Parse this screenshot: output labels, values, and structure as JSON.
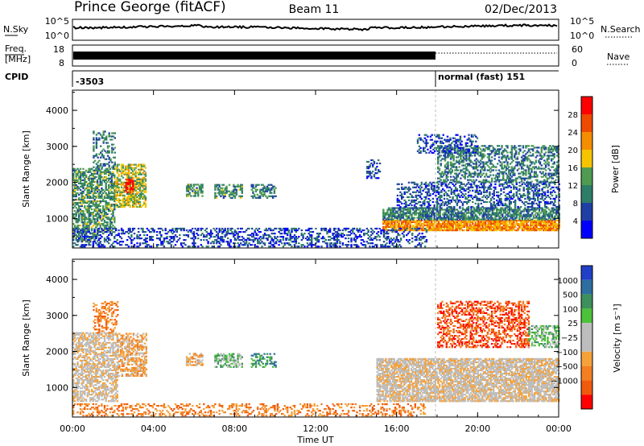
{
  "header": {
    "station": "Prince George (fitACF)",
    "beam": "Beam 11",
    "date": "02/Dec/2013"
  },
  "top_panel": {
    "n_sky_label": "N.Sky",
    "n_search_label": "N.Search",
    "freq_label": "Freq.",
    "freq_unit": "[MHz]",
    "nave_label": "Nave",
    "cpid_label": "CPID",
    "n_sky_ticks": [
      "10^5",
      "10^0"
    ],
    "n_search_ticks": [
      "10^5",
      "10^0"
    ],
    "freq_ticks": [
      "18",
      "8"
    ],
    "nave_ticks": [
      "60",
      "0"
    ],
    "cpid_before": "-3503",
    "cpid_after": "normal (fast) 151"
  },
  "colors": {
    "power_scale": [
      "#0000ff",
      "#1f3fa5",
      "#2e7d68",
      "#4f9b52",
      "#f5c400",
      "#f58d00",
      "#ee4a00",
      "#ff0000"
    ],
    "velocity_scale": [
      "#2040c8",
      "#2e6ea0",
      "#3d8f5c",
      "#4cc13a",
      "#bdbdbd",
      "#bdbdbd",
      "#f6a23a",
      "#f37f22",
      "#f05a0d",
      "#ff0000"
    ]
  },
  "chart_data": [
    {
      "type": "heatmap",
      "name": "power",
      "ylabel": "Slant Range [km]",
      "xlabel": "",
      "x_ticks": [
        "00:00",
        "04:00",
        "08:00",
        "12:00",
        "16:00",
        "20:00",
        "00:00"
      ],
      "xlim_hours": [
        0,
        24
      ],
      "y_ticks": [
        "1000",
        "2000",
        "3000",
        "4000"
      ],
      "ylim_km": [
        180,
        4560
      ],
      "colorbar_label": "Power [dB]",
      "colorbar_ticks": [
        "28",
        "24",
        "20",
        "16",
        "12",
        "8",
        "4"
      ],
      "colorbar_range": [
        0,
        32
      ],
      "blobs": [
        {
          "t0": 0.0,
          "t1": 2.1,
          "r0": 600,
          "r1": 2400,
          "v": 12,
          "d": 0.6
        },
        {
          "t0": 1.0,
          "t1": 2.1,
          "r0": 2400,
          "r1": 3400,
          "v": 10,
          "d": 0.35
        },
        {
          "t0": 2.1,
          "t1": 3.6,
          "r0": 1300,
          "r1": 2500,
          "v": 16,
          "d": 0.65
        },
        {
          "t0": 2.6,
          "t1": 3.0,
          "r0": 1700,
          "r1": 2100,
          "v": 28,
          "d": 0.7
        },
        {
          "t0": 0.0,
          "t1": 1.2,
          "r0": 350,
          "r1": 650,
          "v": 12,
          "d": 0.5
        },
        {
          "t0": 5.6,
          "t1": 6.4,
          "r0": 1600,
          "r1": 1950,
          "v": 12,
          "d": 0.55
        },
        {
          "t0": 7.0,
          "t1": 8.4,
          "r0": 1550,
          "r1": 1950,
          "v": 12,
          "d": 0.55
        },
        {
          "t0": 8.8,
          "t1": 10.0,
          "r0": 1550,
          "r1": 1950,
          "v": 10,
          "d": 0.45
        },
        {
          "t0": 14.5,
          "t1": 15.2,
          "r0": 2100,
          "r1": 2600,
          "v": 6,
          "d": 0.3
        },
        {
          "t0": 15.3,
          "t1": 24.0,
          "r0": 650,
          "r1": 950,
          "v": 22,
          "d": 0.85
        },
        {
          "t0": 15.3,
          "t1": 24.0,
          "r0": 950,
          "r1": 1300,
          "v": 10,
          "d": 0.7
        },
        {
          "t0": 16.0,
          "t1": 24.0,
          "r0": 1300,
          "r1": 2000,
          "v": 7,
          "d": 0.4
        },
        {
          "t0": 18.0,
          "t1": 24.0,
          "r0": 2000,
          "r1": 3000,
          "v": 10,
          "d": 0.45
        },
        {
          "t0": 17.0,
          "t1": 20.0,
          "r0": 2800,
          "r1": 3300,
          "v": 6,
          "d": 0.35
        },
        {
          "t0": 0.0,
          "t1": 17.5,
          "r0": 200,
          "r1": 700,
          "v": 6,
          "d": 0.35
        }
      ]
    },
    {
      "type": "heatmap",
      "name": "velocity",
      "ylabel": "Slant Range [km]",
      "xlabel": "Time UT",
      "x_ticks": [
        "00:00",
        "04:00",
        "08:00",
        "12:00",
        "16:00",
        "20:00",
        "00:00"
      ],
      "xlim_hours": [
        0,
        24
      ],
      "y_ticks": [
        "1000",
        "2000",
        "3000",
        "4000"
      ],
      "ylim_km": [
        180,
        4560
      ],
      "colorbar_label": "Velocity [m s⁻¹]",
      "colorbar_ticks": [
        "1000",
        "500",
        "100",
        "25",
        "−25",
        "−100",
        "−500",
        "−1000"
      ],
      "blobs": [
        {
          "t0": 0.0,
          "t1": 2.2,
          "r0": 600,
          "r1": 2500,
          "c": 5,
          "d": 0.6
        },
        {
          "t0": 1.0,
          "t1": 2.2,
          "r0": 2500,
          "r1": 3400,
          "c": 7,
          "d": 0.35
        },
        {
          "t0": 2.2,
          "t1": 3.6,
          "r0": 1300,
          "r1": 2500,
          "c": 6,
          "d": 0.55
        },
        {
          "t0": 5.6,
          "t1": 6.4,
          "r0": 1600,
          "r1": 1950,
          "c": 6,
          "d": 0.55
        },
        {
          "t0": 7.0,
          "t1": 8.4,
          "r0": 1550,
          "r1": 1950,
          "c": 3,
          "d": 0.55
        },
        {
          "t0": 8.8,
          "t1": 10.0,
          "r0": 1550,
          "r1": 1950,
          "c": 2,
          "d": 0.45
        },
        {
          "t0": 15.0,
          "t1": 24.0,
          "r0": 600,
          "r1": 1800,
          "c": 5,
          "d": 0.75
        },
        {
          "t0": 18.0,
          "t1": 22.5,
          "r0": 2100,
          "r1": 3400,
          "c": 8,
          "d": 0.45
        },
        {
          "t0": 22.5,
          "t1": 24.0,
          "r0": 2100,
          "r1": 2700,
          "c": 3,
          "d": 0.5
        },
        {
          "t0": 0.0,
          "t1": 17.5,
          "r0": 200,
          "r1": 550,
          "c": 7,
          "d": 0.3
        }
      ]
    }
  ]
}
